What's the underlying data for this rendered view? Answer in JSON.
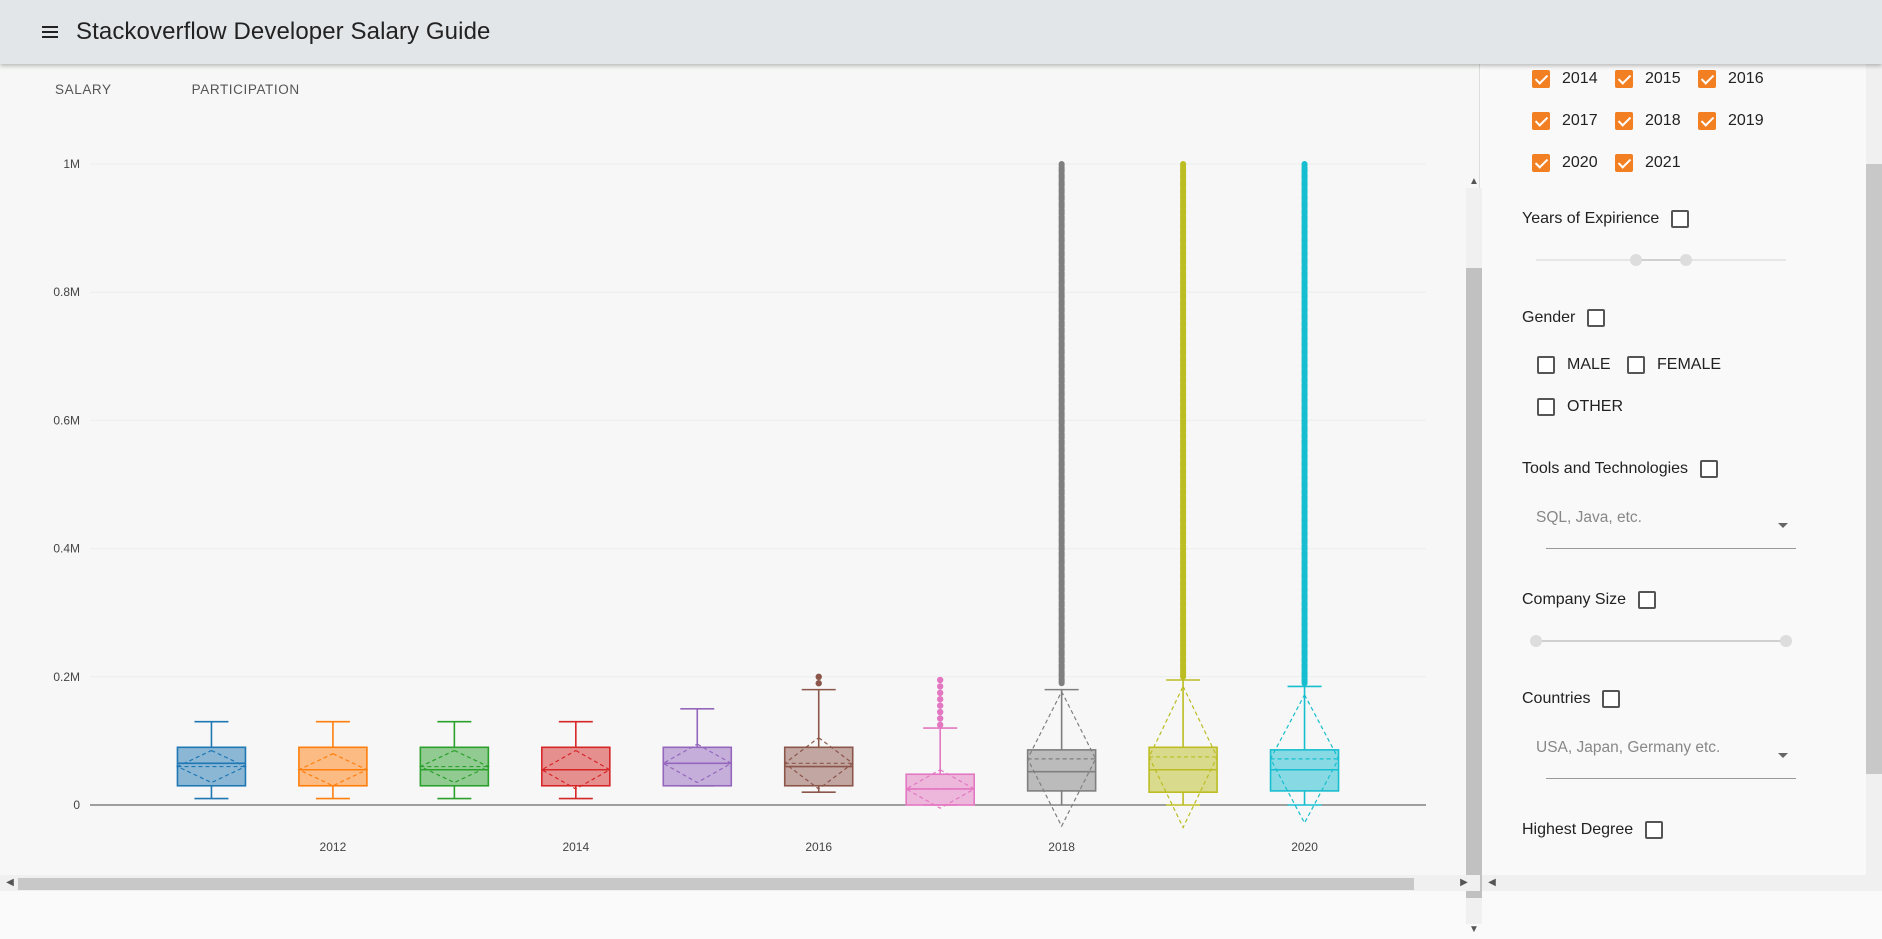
{
  "app": {
    "title": "Stackoverflow Developer Salary Guide",
    "menu_icon": "hamburger-menu-icon"
  },
  "tabs": [
    {
      "label": "SALARY",
      "active": true
    },
    {
      "label": "PARTICIPATION",
      "active": false
    }
  ],
  "filters": {
    "years": [
      {
        "label": "2014",
        "checked": true
      },
      {
        "label": "2015",
        "checked": true
      },
      {
        "label": "2016",
        "checked": true
      },
      {
        "label": "2017",
        "checked": true
      },
      {
        "label": "2018",
        "checked": true
      },
      {
        "label": "2019",
        "checked": true
      },
      {
        "label": "2020",
        "checked": true
      },
      {
        "label": "2021",
        "checked": true
      }
    ],
    "experience": {
      "label": "Years of Expirience",
      "checked": false
    },
    "gender": {
      "label": "Gender",
      "checked": false,
      "options": [
        {
          "label": "MALE",
          "checked": false
        },
        {
          "label": "FEMALE",
          "checked": false
        },
        {
          "label": "OTHER",
          "checked": false
        }
      ]
    },
    "tools": {
      "label": "Tools and Technologies",
      "checked": false,
      "placeholder": "SQL, Java, etc."
    },
    "company_size": {
      "label": "Company Size",
      "checked": false
    },
    "countries": {
      "label": "Countries",
      "checked": false,
      "placeholder": "USA, Japan, Germany etc."
    },
    "degree": {
      "label": "Highest Degree",
      "checked": false
    },
    "accent_color": "#f27f22"
  },
  "chart_data": {
    "type": "box",
    "ylim": [
      0,
      1000000
    ],
    "y_ticks": [
      "0",
      "0.2M",
      "0.4M",
      "0.6M",
      "0.8M",
      "1M"
    ],
    "y_tick_values": [
      0,
      200000,
      400000,
      600000,
      800000,
      1000000
    ],
    "x_ticks": [
      "2012",
      "2014",
      "2016",
      "2018",
      "2020"
    ],
    "x_tick_values": [
      2012,
      2014,
      2016,
      2018,
      2020
    ],
    "series": [
      {
        "x": 2011,
        "color": "#1f77b4",
        "q1": 30000,
        "median": 65000,
        "q3": 90000,
        "lower_fence": 10000,
        "upper_fence": 130000,
        "mean": 60000,
        "sd": 25000,
        "outliers": []
      },
      {
        "x": 2012,
        "color": "#ff7f0e",
        "q1": 30000,
        "median": 55000,
        "q3": 90000,
        "lower_fence": 10000,
        "upper_fence": 130000,
        "mean": 55000,
        "sd": 25000,
        "outliers": []
      },
      {
        "x": 2013,
        "color": "#2ca02c",
        "q1": 30000,
        "median": 55000,
        "q3": 90000,
        "lower_fence": 10000,
        "upper_fence": 130000,
        "mean": 60000,
        "sd": 25000,
        "outliers": []
      },
      {
        "x": 2014,
        "color": "#d62728",
        "q1": 30000,
        "median": 55000,
        "q3": 90000,
        "lower_fence": 10000,
        "upper_fence": 130000,
        "mean": 55000,
        "sd": 30000,
        "outliers": []
      },
      {
        "x": 2015,
        "color": "#9467bd",
        "q1": 30000,
        "median": 65000,
        "q3": 90000,
        "lower_fence": 30000,
        "upper_fence": 150000,
        "mean": 65000,
        "sd": 30000,
        "outliers": []
      },
      {
        "x": 2016,
        "color": "#8c564b",
        "q1": 30000,
        "median": 60000,
        "q3": 90000,
        "lower_fence": 20000,
        "upper_fence": 180000,
        "mean": 65000,
        "sd": 40000,
        "outliers": [
          190000,
          200000
        ]
      },
      {
        "x": 2017,
        "color": "#e377c2",
        "q1": 0,
        "median": 25000,
        "q3": 48000,
        "lower_fence": 0,
        "upper_fence": 120000,
        "mean": 25000,
        "sd": 30000,
        "outliers": [
          125000,
          135000,
          145000,
          155000,
          165000,
          175000,
          185000,
          195000
        ]
      },
      {
        "x": 2018,
        "color": "#7f7f7f",
        "q1": 22000,
        "median": 52000,
        "q3": 86000,
        "lower_fence": 0,
        "upper_fence": 180000,
        "mean": 72000,
        "sd": 105000,
        "outliers_range": [
          190000,
          1000000
        ]
      },
      {
        "x": 2019,
        "color": "#bcbd22",
        "q1": 20000,
        "median": 55000,
        "q3": 90000,
        "lower_fence": 0,
        "upper_fence": 195000,
        "mean": 75000,
        "sd": 110000,
        "outliers_range": [
          200000,
          1000000
        ]
      },
      {
        "x": 2020,
        "color": "#17becf",
        "q1": 22000,
        "median": 55000,
        "q3": 86000,
        "lower_fence": 0,
        "upper_fence": 185000,
        "mean": 72000,
        "sd": 100000,
        "outliers_range": [
          190000,
          1000000
        ]
      }
    ]
  }
}
